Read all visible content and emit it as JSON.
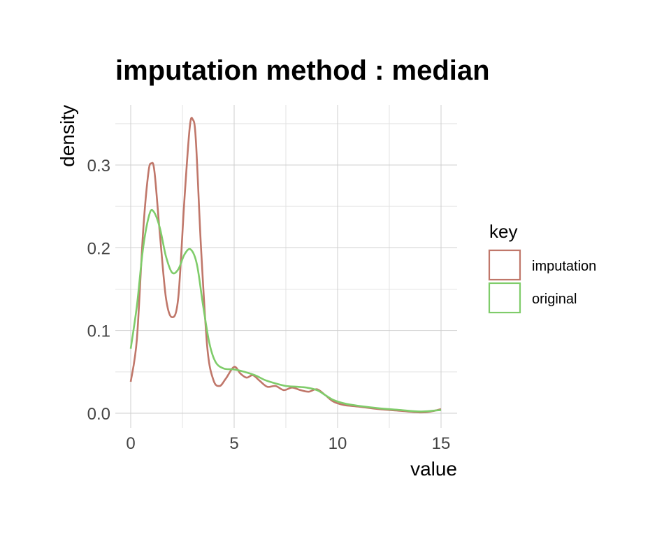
{
  "chart_data": {
    "type": "line",
    "title": "imputation method : median",
    "xlabel": "value",
    "ylabel": "density",
    "xlim": [
      0,
      15
    ],
    "ylim": [
      0,
      0.35
    ],
    "x_ticks": [
      0,
      5,
      10,
      15
    ],
    "x_tick_labels": [
      "0",
      "5",
      "10",
      "15"
    ],
    "y_ticks": [
      0.0,
      0.1,
      0.2,
      0.3
    ],
    "y_tick_labels": [
      "0.0",
      "0.1",
      "0.2",
      "0.3"
    ],
    "grid": true,
    "legend": {
      "title": "key",
      "position": "right"
    },
    "series": [
      {
        "name": "imputation",
        "color": "#c0776a",
        "points": [
          [
            0.0,
            0.038
          ],
          [
            0.3,
            0.09
          ],
          [
            0.6,
            0.22
          ],
          [
            0.85,
            0.29
          ],
          [
            1.0,
            0.302
          ],
          [
            1.15,
            0.292
          ],
          [
            1.4,
            0.22
          ],
          [
            1.7,
            0.14
          ],
          [
            2.0,
            0.116
          ],
          [
            2.3,
            0.14
          ],
          [
            2.6,
            0.26
          ],
          [
            2.85,
            0.345
          ],
          [
            3.0,
            0.355
          ],
          [
            3.15,
            0.33
          ],
          [
            3.4,
            0.2
          ],
          [
            3.7,
            0.08
          ],
          [
            4.0,
            0.04
          ],
          [
            4.3,
            0.033
          ],
          [
            4.6,
            0.042
          ],
          [
            5.0,
            0.056
          ],
          [
            5.3,
            0.048
          ],
          [
            5.6,
            0.043
          ],
          [
            5.9,
            0.046
          ],
          [
            6.2,
            0.04
          ],
          [
            6.6,
            0.032
          ],
          [
            7.0,
            0.033
          ],
          [
            7.4,
            0.028
          ],
          [
            7.8,
            0.031
          ],
          [
            8.2,
            0.028
          ],
          [
            8.6,
            0.026
          ],
          [
            9.0,
            0.029
          ],
          [
            9.4,
            0.022
          ],
          [
            9.8,
            0.014
          ],
          [
            10.3,
            0.01
          ],
          [
            11.0,
            0.008
          ],
          [
            12.0,
            0.005
          ],
          [
            13.0,
            0.003
          ],
          [
            14.0,
            0.001
          ],
          [
            14.5,
            0.002
          ],
          [
            15.0,
            0.005
          ]
        ]
      },
      {
        "name": "original",
        "color": "#7fcc6a",
        "points": [
          [
            0.0,
            0.078
          ],
          [
            0.3,
            0.13
          ],
          [
            0.6,
            0.2
          ],
          [
            0.9,
            0.24
          ],
          [
            1.1,
            0.244
          ],
          [
            1.4,
            0.225
          ],
          [
            1.7,
            0.19
          ],
          [
            2.0,
            0.17
          ],
          [
            2.3,
            0.174
          ],
          [
            2.6,
            0.192
          ],
          [
            2.9,
            0.198
          ],
          [
            3.2,
            0.18
          ],
          [
            3.5,
            0.13
          ],
          [
            3.8,
            0.085
          ],
          [
            4.1,
            0.062
          ],
          [
            4.5,
            0.054
          ],
          [
            5.0,
            0.053
          ],
          [
            5.5,
            0.05
          ],
          [
            6.0,
            0.046
          ],
          [
            6.5,
            0.04
          ],
          [
            7.0,
            0.036
          ],
          [
            7.5,
            0.033
          ],
          [
            8.0,
            0.032
          ],
          [
            8.5,
            0.031
          ],
          [
            9.0,
            0.028
          ],
          [
            9.4,
            0.022
          ],
          [
            9.8,
            0.016
          ],
          [
            10.3,
            0.012
          ],
          [
            11.0,
            0.009
          ],
          [
            12.0,
            0.006
          ],
          [
            13.0,
            0.004
          ],
          [
            14.0,
            0.002
          ],
          [
            15.0,
            0.004
          ]
        ]
      }
    ]
  }
}
